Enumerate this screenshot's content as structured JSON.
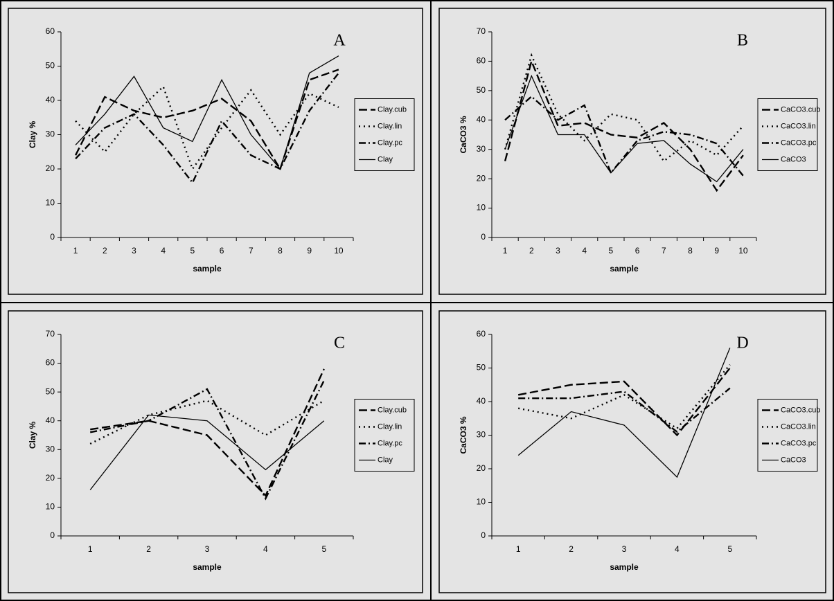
{
  "chart_data": [
    {
      "type": "line",
      "label": "A",
      "xlabel": "sample",
      "ylabel": "Clay %",
      "categories": [
        "1",
        "2",
        "3",
        "4",
        "5",
        "6",
        "7",
        "8",
        "9",
        "10"
      ],
      "ylim": [
        0,
        60
      ],
      "yticks": [
        0,
        10,
        20,
        30,
        40,
        50,
        60
      ],
      "legend": "right",
      "series": [
        {
          "name": "Clay.cub",
          "color": "#000000",
          "style": "dashed",
          "values": [
            24,
            41,
            37,
            35,
            37,
            40.5,
            34,
            20,
            46,
            49
          ]
        },
        {
          "name": "Clay.lin",
          "color": "#000000",
          "style": "dotted",
          "values": [
            34,
            25,
            36,
            44,
            20,
            32,
            43,
            30,
            42,
            38
          ]
        },
        {
          "name": "Clay.pc",
          "color": "#000000",
          "style": "dashdot",
          "values": [
            23,
            32,
            36,
            27,
            16,
            34,
            24,
            20,
            37,
            48
          ]
        },
        {
          "name": "Clay",
          "color": "#000000",
          "style": "solid",
          "values": [
            27,
            36,
            47,
            32,
            28,
            46,
            30,
            20,
            48,
            53
          ]
        }
      ]
    },
    {
      "type": "line",
      "label": "B",
      "xlabel": "sample",
      "ylabel": "CaCO3 %",
      "categories": [
        "1",
        "2",
        "3",
        "4",
        "5",
        "6",
        "7",
        "8",
        "9",
        "10"
      ],
      "ylim": [
        0,
        70
      ],
      "yticks": [
        0,
        10,
        20,
        30,
        40,
        50,
        60,
        70
      ],
      "legend": "right",
      "series": [
        {
          "name": "CaCO3.cub",
          "color": "#000000",
          "style": "dashed",
          "values": [
            26,
            60,
            38,
            39,
            35,
            34,
            39,
            30,
            16,
            28
          ]
        },
        {
          "name": "CaCO3.lin",
          "color": "#000000",
          "style": "dotted",
          "values": [
            30,
            62,
            42,
            33,
            42,
            40,
            26,
            33,
            28,
            38
          ]
        },
        {
          "name": "CaCO3.pc",
          "color": "#000000",
          "style": "dashdot",
          "values": [
            40,
            48,
            40,
            45,
            22,
            33,
            36,
            35,
            32,
            21
          ]
        },
        {
          "name": "CaCO3",
          "color": "#000000",
          "style": "solid",
          "values": [
            30,
            55,
            35,
            35,
            22,
            32,
            33,
            25,
            19,
            30
          ]
        }
      ]
    },
    {
      "type": "line",
      "label": "C",
      "xlabel": "sample",
      "ylabel": "Clay %",
      "categories": [
        "1",
        "2",
        "3",
        "4",
        "5"
      ],
      "ylim": [
        0,
        70
      ],
      "yticks": [
        0,
        10,
        20,
        30,
        40,
        50,
        60,
        70
      ],
      "legend": "right",
      "series": [
        {
          "name": "Clay.cub",
          "color": "#000000",
          "style": "dashed",
          "values": [
            37,
            40,
            35,
            14,
            58
          ]
        },
        {
          "name": "Clay.lin",
          "color": "#000000",
          "style": "dotted",
          "values": [
            32,
            42,
            47,
            35,
            47
          ]
        },
        {
          "name": "Clay.pc",
          "color": "#000000",
          "style": "dashdot",
          "values": [
            36,
            40,
            51,
            13,
            54
          ]
        },
        {
          "name": "Clay",
          "color": "#000000",
          "style": "solid",
          "values": [
            16,
            42,
            40,
            23,
            40
          ]
        }
      ]
    },
    {
      "type": "line",
      "label": "D",
      "xlabel": "sample",
      "ylabel": "CaCO3 %",
      "categories": [
        "1",
        "2",
        "3",
        "4",
        "5"
      ],
      "ylim": [
        0,
        60
      ],
      "yticks": [
        0,
        10,
        20,
        30,
        40,
        50,
        60
      ],
      "legend": "right",
      "series": [
        {
          "name": "CaCO3.cub",
          "color": "#000000",
          "style": "dashed",
          "values": [
            42,
            45,
            46,
            30,
            50
          ]
        },
        {
          "name": "CaCO3.lin",
          "color": "#000000",
          "style": "dotted",
          "values": [
            38,
            35,
            42,
            32,
            51
          ]
        },
        {
          "name": "CaCO3.pc",
          "color": "#000000",
          "style": "dashdot",
          "values": [
            41,
            41,
            43,
            31,
            44
          ]
        },
        {
          "name": "CaCO3",
          "color": "#000000",
          "style": "solid",
          "values": [
            24,
            37,
            33,
            17.5,
            56
          ]
        }
      ]
    }
  ]
}
